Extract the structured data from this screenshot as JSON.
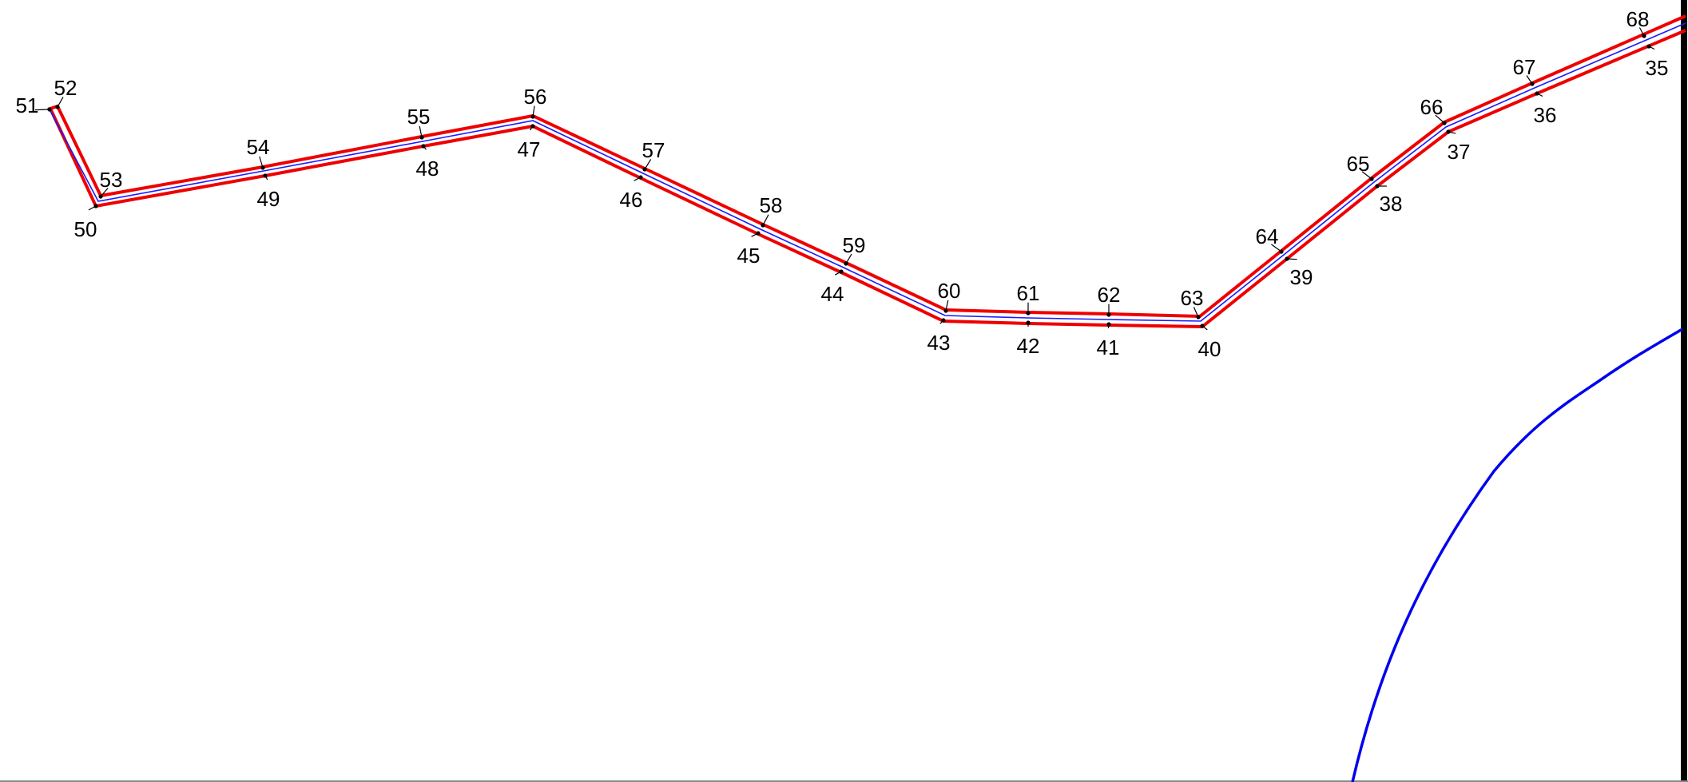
{
  "drawing": {
    "colors": {
      "outer_boundary": "#ee0000",
      "centerline": "#1a1aff",
      "curve": "#0000ee",
      "frame": "#000000",
      "labels": "#000000"
    },
    "upper_edge_points": [
      "51",
      "52",
      "53",
      "54",
      "55",
      "56",
      "57",
      "58",
      "59",
      "60",
      "61",
      "62",
      "63",
      "64",
      "65",
      "66",
      "67",
      "68"
    ],
    "lower_edge_points": [
      "50",
      "49",
      "48",
      "47",
      "46",
      "45",
      "44",
      "43",
      "42",
      "41",
      "40",
      "39",
      "38",
      "37",
      "36",
      "35"
    ]
  }
}
